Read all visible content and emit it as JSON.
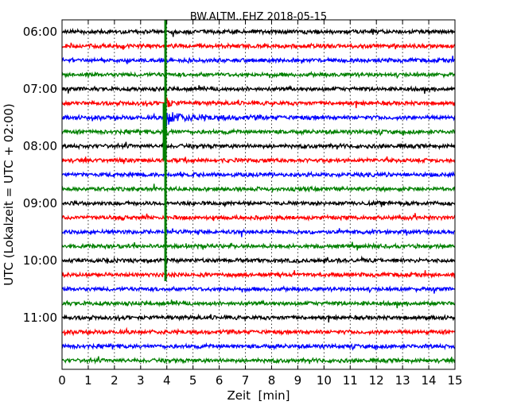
{
  "chart_data": {
    "type": "line",
    "title": "BW.ALTM..EHZ 2018-05-15",
    "xlabel": "Zeit  [min]",
    "ylabel": "UTC (Lokalzeit = UTC + 02:00)",
    "xlim": [
      0,
      15
    ],
    "x_ticks": [
      "0",
      "1",
      "2",
      "3",
      "4",
      "5",
      "6",
      "7",
      "8",
      "9",
      "10",
      "11",
      "12",
      "13",
      "14",
      "15"
    ],
    "y_tick_labels": [
      "06:00",
      "07:00",
      "08:00",
      "09:00",
      "10:00",
      "11:00"
    ],
    "grid": "vertical-dotted",
    "trace_interval_minutes": 15,
    "trace_start_times": [
      "06:00",
      "06:15",
      "06:30",
      "06:45",
      "07:00",
      "07:15",
      "07:30",
      "07:45",
      "08:00",
      "08:15",
      "08:30",
      "08:45",
      "09:00",
      "09:15",
      "09:30",
      "09:45",
      "10:00",
      "10:15",
      "10:30",
      "10:45",
      "11:00",
      "11:15",
      "11:30",
      "11:45"
    ],
    "trace_colors": [
      "#000000",
      "#ff0000",
      "#0000ff",
      "#008000"
    ],
    "event": {
      "time_minute": 3.95,
      "peak_trace_start": "07:30",
      "onset_trace_start": "06:00",
      "end_trace_start": "10:15"
    }
  }
}
